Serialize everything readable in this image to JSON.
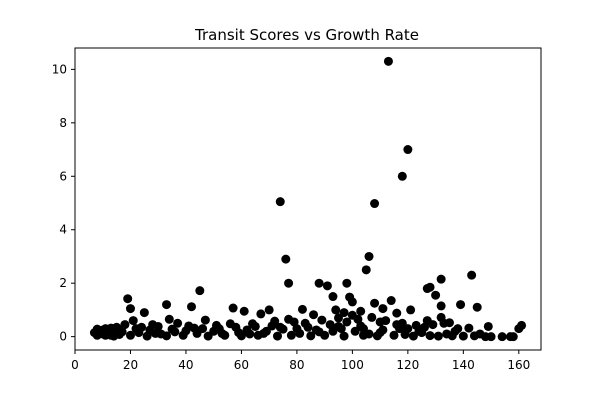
{
  "chart_data": {
    "type": "scatter",
    "title": "Transit Scores vs Growth Rate",
    "xlabel": "",
    "ylabel": "",
    "xlim": [
      0,
      168
    ],
    "ylim": [
      -0.5,
      10.8
    ],
    "xticks": [
      0,
      20,
      40,
      60,
      80,
      100,
      120,
      140,
      160
    ],
    "yticks": [
      0,
      2,
      4,
      6,
      8,
      10
    ],
    "grid": false,
    "marker_color": "#000000",
    "points": [
      [
        113,
        10.3
      ],
      [
        120,
        7.0
      ],
      [
        118,
        6.0
      ],
      [
        74,
        5.05
      ],
      [
        108,
        4.98
      ],
      [
        106,
        3.0
      ],
      [
        76,
        2.9
      ],
      [
        105,
        2.5
      ],
      [
        143,
        2.3
      ],
      [
        132,
        2.15
      ],
      [
        77,
        2.0
      ],
      [
        88,
        2.0
      ],
      [
        98,
        2.0
      ],
      [
        91,
        1.9
      ],
      [
        127,
        1.8
      ],
      [
        128,
        1.85
      ],
      [
        45,
        1.72
      ],
      [
        130,
        1.55
      ],
      [
        93,
        1.5
      ],
      [
        99,
        1.48
      ],
      [
        19,
        1.42
      ],
      [
        114,
        1.35
      ],
      [
        108,
        1.25
      ],
      [
        139,
        1.2
      ],
      [
        33,
        1.2
      ],
      [
        42,
        1.12
      ],
      [
        57,
        1.07
      ],
      [
        132,
        1.15
      ],
      [
        145,
        1.1
      ],
      [
        20,
        1.05
      ],
      [
        121,
        1.0
      ],
      [
        82,
        1.02
      ],
      [
        94,
        1.0
      ],
      [
        70,
        1.0
      ],
      [
        61,
        0.95
      ],
      [
        25,
        0.9
      ],
      [
        116,
        0.88
      ],
      [
        67,
        0.85
      ],
      [
        86,
        0.82
      ],
      [
        100,
        0.8
      ],
      [
        132,
        0.72
      ],
      [
        34,
        0.65
      ],
      [
        47,
        0.62
      ],
      [
        21,
        0.6
      ],
      [
        127,
        0.6
      ],
      [
        72,
        0.58
      ],
      [
        79,
        0.55
      ],
      [
        110,
        0.55
      ],
      [
        135,
        0.52
      ],
      [
        37,
        0.5
      ],
      [
        56,
        0.48
      ],
      [
        18,
        0.45
      ],
      [
        92,
        0.45
      ],
      [
        123,
        0.42
      ],
      [
        149,
        0.38
      ],
      [
        161,
        0.42
      ],
      [
        30,
        0.38
      ],
      [
        41,
        0.4
      ],
      [
        65,
        0.38
      ],
      [
        103,
        0.4
      ],
      [
        142,
        0.32
      ],
      [
        13,
        0.32
      ],
      [
        52,
        0.3
      ],
      [
        84,
        0.35
      ],
      [
        117,
        0.3
      ],
      [
        8,
        0.28
      ],
      [
        10,
        0.25
      ],
      [
        15,
        0.22
      ],
      [
        27,
        0.25
      ],
      [
        50,
        0.2
      ],
      [
        75,
        0.28
      ],
      [
        96,
        0.3
      ],
      [
        111,
        0.25
      ],
      [
        137,
        0.2
      ],
      [
        160,
        0.3
      ],
      [
        23,
        0.15
      ],
      [
        36,
        0.18
      ],
      [
        59,
        0.15
      ],
      [
        69,
        0.2
      ],
      [
        88,
        0.18
      ],
      [
        101,
        0.2
      ],
      [
        125,
        0.15
      ],
      [
        146,
        0.1
      ],
      [
        9,
        0.12
      ],
      [
        12,
        0.1
      ],
      [
        16,
        0.08
      ],
      [
        31,
        0.1
      ],
      [
        44,
        0.12
      ],
      [
        63,
        0.1
      ],
      [
        81,
        0.12
      ],
      [
        106,
        0.1
      ],
      [
        119,
        0.08
      ],
      [
        134,
        0.1
      ],
      [
        7,
        0.15
      ],
      [
        11,
        0.05
      ],
      [
        14,
        0.02
      ],
      [
        20,
        0.05
      ],
      [
        26,
        0.02
      ],
      [
        33,
        0.03
      ],
      [
        39,
        0.05
      ],
      [
        48,
        0.02
      ],
      [
        54,
        0.05
      ],
      [
        60,
        0.03
      ],
      [
        66,
        0.05
      ],
      [
        73,
        0.02
      ],
      [
        78,
        0.05
      ],
      [
        85,
        0.03
      ],
      [
        90,
        0.05
      ],
      [
        97,
        0.02
      ],
      [
        104,
        0.05
      ],
      [
        109,
        0.03
      ],
      [
        115,
        0.05
      ],
      [
        122,
        0.02
      ],
      [
        128,
        0.04
      ],
      [
        131,
        0.02
      ],
      [
        136,
        0.03
      ],
      [
        140,
        0.02
      ],
      [
        144,
        0.03
      ],
      [
        148,
        0.0
      ],
      [
        150,
        0.0
      ],
      [
        154,
        0.0
      ],
      [
        157,
        0.0
      ],
      [
        158,
        0.0
      ],
      [
        22,
        0.3
      ],
      [
        28,
        0.45
      ],
      [
        35,
        0.28
      ],
      [
        43,
        0.32
      ],
      [
        51,
        0.42
      ],
      [
        58,
        0.35
      ],
      [
        64,
        0.48
      ],
      [
        71,
        0.4
      ],
      [
        77,
        0.65
      ],
      [
        83,
        0.5
      ],
      [
        89,
        0.62
      ],
      [
        95,
        0.7
      ],
      [
        102,
        0.65
      ],
      [
        107,
        0.72
      ],
      [
        112,
        0.6
      ],
      [
        118,
        0.5
      ],
      [
        126,
        0.35
      ],
      [
        129,
        0.45
      ],
      [
        133,
        0.5
      ],
      [
        138,
        0.3
      ],
      [
        17,
        0.18
      ],
      [
        24,
        0.35
      ],
      [
        29,
        0.12
      ],
      [
        40,
        0.22
      ],
      [
        46,
        0.3
      ],
      [
        53,
        0.12
      ],
      [
        62,
        0.25
      ],
      [
        68,
        0.12
      ],
      [
        74,
        0.35
      ],
      [
        80,
        0.3
      ],
      [
        87,
        0.25
      ],
      [
        93,
        0.2
      ],
      [
        98,
        0.55
      ],
      [
        104,
        0.3
      ],
      [
        110,
        0.15
      ],
      [
        116,
        0.45
      ],
      [
        120,
        0.3
      ],
      [
        124,
        0.2
      ],
      [
        8,
        0.05
      ],
      [
        9,
        0.2
      ],
      [
        10,
        0.1
      ],
      [
        11,
        0.3
      ],
      [
        12,
        0.2
      ],
      [
        13,
        0.05
      ],
      [
        14,
        0.15
      ],
      [
        15,
        0.35
      ],
      [
        16,
        0.25
      ],
      [
        100,
        1.3
      ],
      [
        97,
        0.9
      ],
      [
        103,
        0.95
      ],
      [
        111,
        1.05
      ],
      [
        95,
        0.38
      ]
    ]
  }
}
